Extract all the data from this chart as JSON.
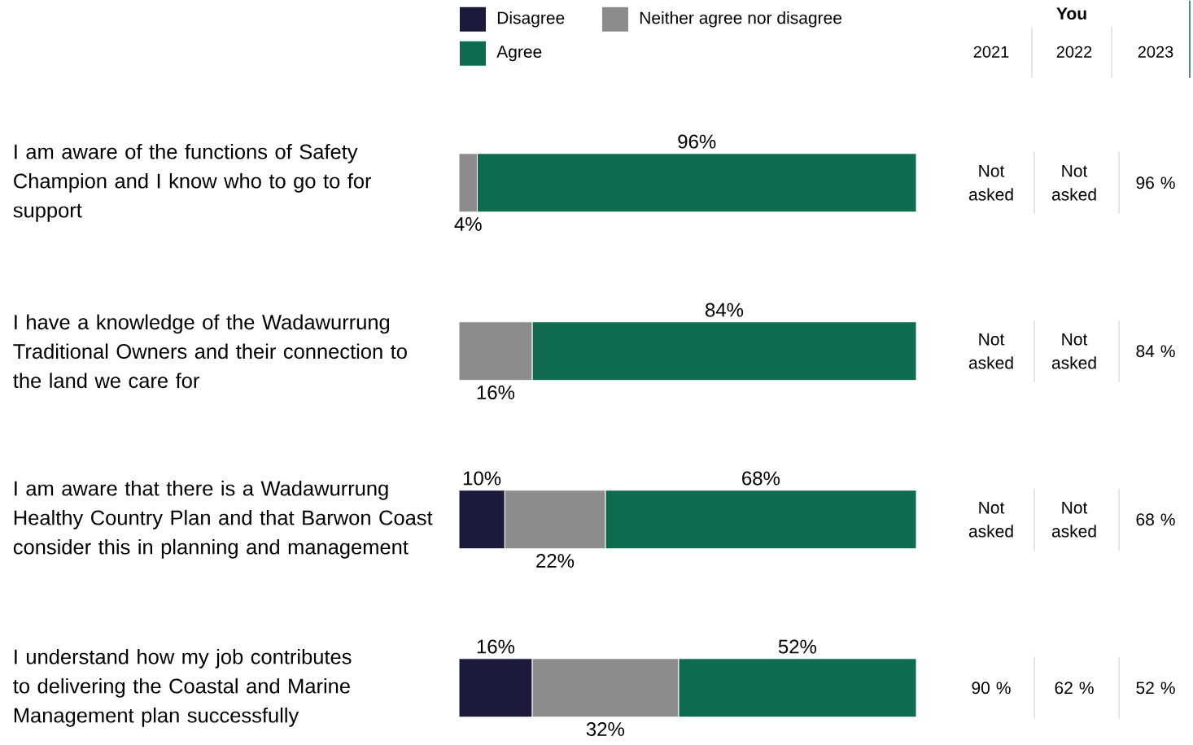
{
  "chart_data": [
    {
      "type": "bar",
      "orientation": "horizontal",
      "stacked": true,
      "legend": "top left",
      "tick_labels": "y",
      "categories": [
        "I am aware of the functions of Safety Champion and I know who to go to for support",
        "I have a knowledge of the Wadawurrung Traditional Owners and their connection to the land we care for",
        "I am aware that there is a Wadawurrung Healthy Country Plan and that Barwon Coast consider this in planning and management",
        "I understand how my job contributes to delivering the Coastal and Marine Management plan successfully"
      ],
      "series": [
        {
          "name": "Disagree",
          "color": "#1b1a3a",
          "values": [
            0,
            0,
            10,
            16
          ],
          "value_labels": [
            null,
            null,
            "10%",
            "16%"
          ]
        },
        {
          "name": "Neither agree nor disagree",
          "color": "#8c8c8c",
          "values": [
            4,
            16,
            22,
            32
          ],
          "value_labels": [
            "4%",
            "16%",
            "22%",
            "32%"
          ]
        },
        {
          "name": "Agree",
          "color": "#0f6b4f",
          "values": [
            96,
            84,
            68,
            52
          ],
          "value_labels": [
            "96%",
            "84%",
            "68%",
            "52%"
          ]
        }
      ]
    },
    {
      "type": "other",
      "title": "You",
      "categories": [
        "2021",
        "2022",
        "2023"
      ],
      "cell_labels": [
        [
          "Not asked",
          "Not asked",
          "96 %"
        ],
        [
          "Not asked",
          "Not asked",
          "84 %"
        ],
        [
          "Not asked",
          "Not asked",
          "68 %"
        ],
        [
          "90 %",
          "62 %",
          "52 %"
        ]
      ]
    }
  ]
}
